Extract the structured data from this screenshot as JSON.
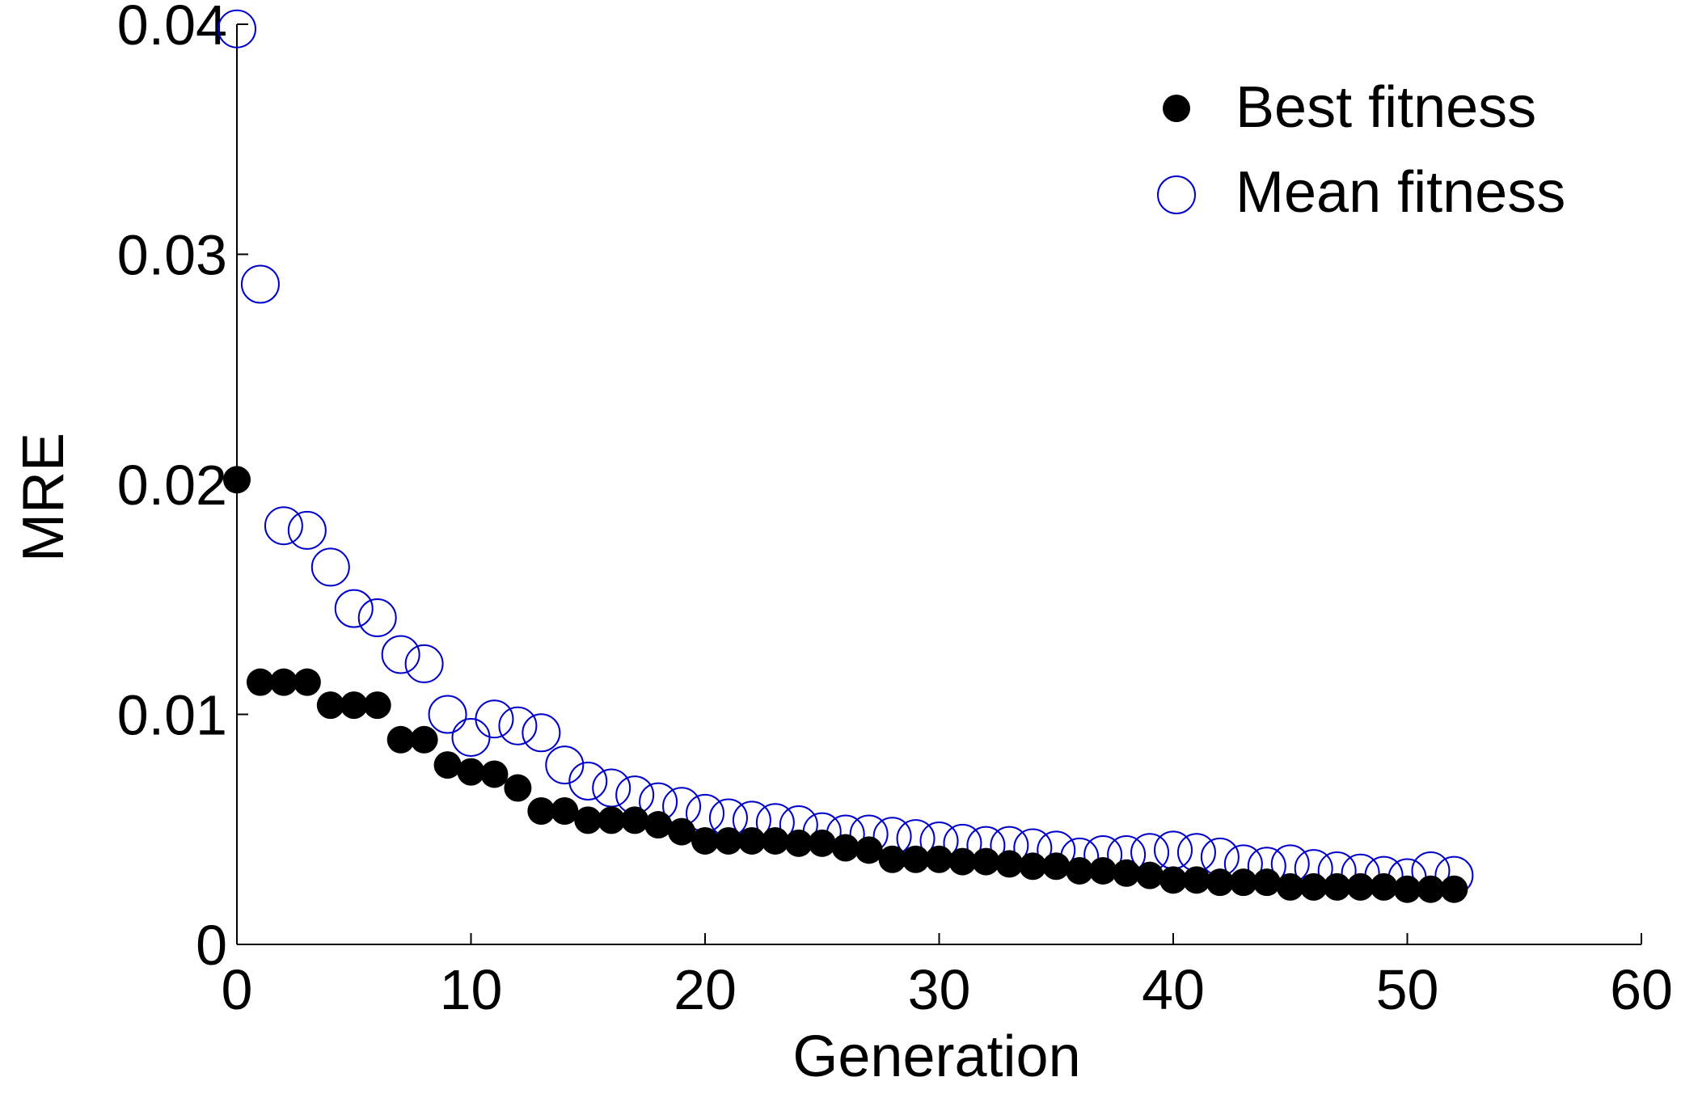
{
  "chart_data": {
    "type": "scatter",
    "title": "",
    "xlabel": "Generation",
    "ylabel": "MRE",
    "xlim": [
      0,
      60
    ],
    "ylim": [
      0,
      0.04
    ],
    "xticks": [
      0,
      10,
      20,
      30,
      40,
      50,
      60
    ],
    "yticks": [
      0,
      0.01,
      0.02,
      0.03,
      0.04
    ],
    "xtick_labels": [
      "0",
      "10",
      "20",
      "30",
      "40",
      "50",
      "60"
    ],
    "ytick_labels": [
      "0",
      "0.01",
      "0.02",
      "0.03",
      "0.04"
    ],
    "grid": false,
    "legend_position": "top-right",
    "series": [
      {
        "name": "Best fitness",
        "marker": "filled-circle",
        "color": "#000000",
        "x": [
          0,
          1,
          2,
          3,
          4,
          5,
          6,
          7,
          8,
          9,
          10,
          11,
          12,
          13,
          14,
          15,
          16,
          17,
          18,
          19,
          20,
          21,
          22,
          23,
          24,
          25,
          26,
          27,
          28,
          29,
          30,
          31,
          32,
          33,
          34,
          35,
          36,
          37,
          38,
          39,
          40,
          41,
          42,
          43,
          44,
          45,
          46,
          47,
          48,
          49,
          50,
          51,
          52
        ],
        "values": [
          0.0202,
          0.0114,
          0.0114,
          0.0114,
          0.0104,
          0.0104,
          0.0104,
          0.0089,
          0.0089,
          0.0078,
          0.0075,
          0.0074,
          0.0068,
          0.0058,
          0.0058,
          0.0054,
          0.0054,
          0.0054,
          0.0052,
          0.0049,
          0.0045,
          0.0045,
          0.0045,
          0.0045,
          0.0044,
          0.0044,
          0.0042,
          0.0041,
          0.0037,
          0.0037,
          0.0037,
          0.0036,
          0.0036,
          0.0035,
          0.0034,
          0.0034,
          0.0032,
          0.0032,
          0.0031,
          0.003,
          0.0028,
          0.0028,
          0.0027,
          0.0027,
          0.0027,
          0.0025,
          0.0025,
          0.0025,
          0.0025,
          0.0025,
          0.0024,
          0.0024,
          0.0024
        ]
      },
      {
        "name": "Mean fitness",
        "marker": "open-circle",
        "color": "#0000cc",
        "x": [
          0,
          1,
          2,
          3,
          4,
          5,
          6,
          7,
          8,
          9,
          10,
          11,
          12,
          13,
          14,
          15,
          16,
          17,
          18,
          19,
          20,
          21,
          22,
          23,
          24,
          25,
          26,
          27,
          28,
          29,
          30,
          31,
          32,
          33,
          34,
          35,
          36,
          37,
          38,
          39,
          40,
          41,
          42,
          43,
          44,
          45,
          46,
          47,
          48,
          49,
          50,
          51,
          52
        ],
        "values": [
          0.0398,
          0.0287,
          0.0182,
          0.018,
          0.0164,
          0.0146,
          0.0142,
          0.0126,
          0.0122,
          0.01,
          0.009,
          0.0098,
          0.0095,
          0.0092,
          0.0078,
          0.0071,
          0.0068,
          0.0065,
          0.0062,
          0.006,
          0.0057,
          0.0055,
          0.0054,
          0.0053,
          0.0052,
          0.0049,
          0.0048,
          0.0048,
          0.0047,
          0.0046,
          0.0045,
          0.0044,
          0.0043,
          0.0043,
          0.0042,
          0.0041,
          0.0038,
          0.0039,
          0.0039,
          0.004,
          0.0041,
          0.004,
          0.0038,
          0.0035,
          0.0034,
          0.0035,
          0.0033,
          0.0032,
          0.0031,
          0.003,
          0.0029,
          0.0032,
          0.003
        ]
      }
    ]
  }
}
